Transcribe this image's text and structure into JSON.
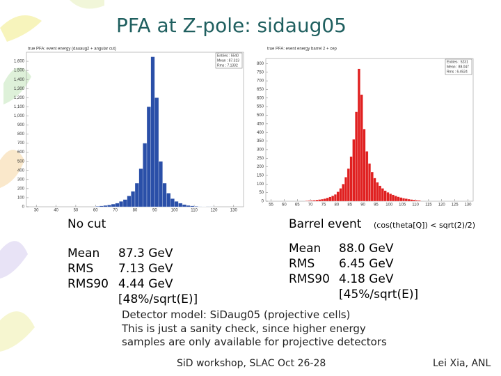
{
  "slide": {
    "title": "PFA at Z-pole: sidaug05",
    "left": {
      "heading": "No cut",
      "rows": [
        [
          "Mean",
          "87.3 GeV"
        ],
        [
          "RMS",
          "7.13 GeV"
        ],
        [
          "RMS90",
          "4.44 GeV"
        ]
      ],
      "resolution": "[48%/sqrt(E)]"
    },
    "right": {
      "heading": "Barrel event",
      "condition": "(cos(theta[Q]) < sqrt(2)/2)",
      "rows": [
        [
          "Mean",
          "88.0 GeV"
        ],
        [
          "RMS",
          "6.45 GeV"
        ],
        [
          "RMS90",
          "4.18 GeV"
        ]
      ],
      "resolution": "[45%/sqrt(E)]"
    },
    "notes": [
      "Detector model: SiDaug05  (projective cells)",
      "This is just a sanity check, since higher energy",
      "samples are only available for projective detectors"
    ],
    "footer_left": "SiD workshop, SLAC Oct 26-28",
    "footer_right": "Lei Xia, ANL"
  },
  "chart_data": [
    {
      "type": "histogram",
      "title": "true PFA: event energy (dauaug2 + angular cut)",
      "color": "#2a4fa8",
      "stats": [
        "Entries : 5540",
        "Mean : 87.313",
        "Rms : 7.1332"
      ],
      "bins": [
        60,
        62,
        64,
        66,
        68,
        70,
        72,
        74,
        76,
        78,
        80,
        82,
        84,
        86,
        88,
        90,
        92,
        94,
        96,
        98,
        100,
        102,
        104,
        106,
        108,
        110,
        112,
        114,
        116,
        118,
        120
      ],
      "values": [
        5,
        10,
        15,
        20,
        30,
        40,
        60,
        80,
        120,
        170,
        260,
        420,
        700,
        1100,
        1650,
        1200,
        500,
        260,
        150,
        90,
        60,
        40,
        25,
        15,
        10,
        5,
        3,
        2,
        1,
        1
      ],
      "xlim": [
        25,
        135
      ],
      "xticks": [
        30,
        40,
        50,
        60,
        70,
        80,
        90,
        100,
        110,
        120,
        130
      ],
      "ylim": [
        0,
        1700
      ],
      "yticks": [
        0,
        100,
        200,
        300,
        400,
        500,
        600,
        700,
        800,
        900,
        {
          "value": 1000,
          "label": "1,000"
        },
        {
          "value": 1100,
          "label": "1,100"
        },
        {
          "value": 1200,
          "label": "1,200"
        },
        {
          "value": 1300,
          "label": "1,300"
        },
        {
          "value": 1400,
          "label": "1,400"
        },
        {
          "value": 1500,
          "label": "1,500"
        },
        {
          "value": 1600,
          "label": "1,600"
        }
      ]
    },
    {
      "type": "histogram",
      "title": "true PFA: event energy barrel 2 + cep",
      "color": "#e02020",
      "stats": [
        "Entries : 5231",
        "Mean : 88.047",
        "Rms : 6.4524"
      ],
      "bins": [
        68,
        69,
        70,
        71,
        72,
        73,
        74,
        75,
        76,
        77,
        78,
        79,
        80,
        81,
        82,
        83,
        84,
        85,
        86,
        87,
        88,
        89,
        90,
        91,
        92,
        93,
        94,
        95,
        96,
        97,
        98,
        99,
        100,
        101,
        102,
        103,
        104,
        105,
        106,
        107,
        108,
        109,
        110,
        111,
        112
      ],
      "values": [
        3,
        4,
        5,
        6,
        8,
        10,
        12,
        15,
        20,
        25,
        32,
        40,
        55,
        75,
        100,
        140,
        190,
        260,
        360,
        520,
        770,
        620,
        420,
        290,
        220,
        170,
        135,
        110,
        90,
        75,
        62,
        52,
        44,
        37,
        31,
        26,
        22,
        18,
        15,
        12,
        10,
        8,
        6,
        5
      ],
      "xlim": [
        53,
        132
      ],
      "xticks": [
        55,
        60,
        65,
        70,
        75,
        80,
        85,
        90,
        95,
        100,
        105,
        110,
        115,
        120,
        125,
        130
      ],
      "ylim": [
        0,
        830
      ],
      "yticks": [
        0,
        50,
        100,
        150,
        200,
        250,
        300,
        350,
        400,
        450,
        500,
        550,
        600,
        650,
        700,
        750,
        800
      ]
    }
  ]
}
